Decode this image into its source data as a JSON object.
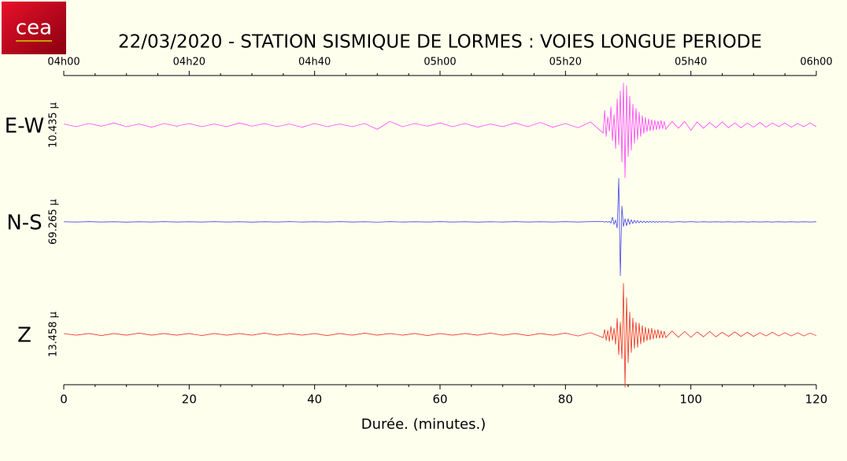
{
  "logo": "cea",
  "chart_data": {
    "type": "line",
    "title": "22/03/2020  -  STATION SISMIQUE DE LORMES : VOIES LONGUE PERIODE",
    "xlabel": "Durée.  (minutes.)",
    "xlim": [
      0,
      120
    ],
    "xticks": [
      0,
      20,
      40,
      60,
      80,
      100,
      120
    ],
    "xminorticks": [
      5,
      10,
      15,
      25,
      30,
      35,
      45,
      50,
      55,
      65,
      70,
      75,
      85,
      90,
      95,
      105,
      110,
      115
    ],
    "x2ticks": [
      {
        "value": 0,
        "label": "04h00"
      },
      {
        "value": 20,
        "label": "04h20"
      },
      {
        "value": 40,
        "label": "04h40"
      },
      {
        "value": 60,
        "label": "05h00"
      },
      {
        "value": 80,
        "label": "05h20"
      },
      {
        "value": 100,
        "label": "05h40"
      },
      {
        "value": 120,
        "label": "06h00"
      }
    ],
    "x": [
      0,
      2,
      4,
      6,
      8,
      10,
      12,
      14,
      16,
      18,
      20,
      22,
      24,
      26,
      28,
      30,
      32,
      34,
      36,
      38,
      40,
      42,
      44,
      46,
      48,
      50,
      52,
      54,
      56,
      58,
      60,
      62,
      64,
      66,
      68,
      70,
      72,
      74,
      76,
      78,
      80,
      82,
      84,
      86,
      86.25,
      86.5,
      86.75,
      87,
      87.25,
      87.5,
      87.75,
      88,
      88.25,
      88.5,
      88.75,
      89,
      89.25,
      89.5,
      89.75,
      90,
      90.25,
      90.5,
      90.75,
      91,
      91.25,
      91.5,
      91.75,
      92,
      92.25,
      92.5,
      92.75,
      93,
      93.25,
      93.5,
      93.75,
      94,
      94.25,
      94.5,
      94.75,
      95,
      95.25,
      95.5,
      95.75,
      96,
      97,
      98,
      99,
      100,
      101,
      102,
      103,
      104,
      105,
      106,
      107,
      108,
      109,
      110,
      111,
      112,
      113,
      114,
      115,
      116,
      117,
      118,
      119,
      120
    ],
    "series": [
      {
        "name": "E-W",
        "amplitude_label": "10.435 µ",
        "color": "#ff44ff",
        "ylim": [
          -10.435,
          10.435
        ],
        "values": [
          0.2,
          -0.3,
          0.3,
          -0.2,
          0.4,
          -0.3,
          0.2,
          -0.4,
          0.3,
          -0.2,
          0.3,
          -0.3,
          0.2,
          -0.3,
          0.4,
          -0.2,
          0.3,
          -0.3,
          0.2,
          -0.4,
          0.3,
          -0.3,
          0.2,
          -0.3,
          0.3,
          -0.8,
          0.7,
          -0.3,
          0.3,
          -0.2,
          0.4,
          -0.3,
          0.3,
          -0.4,
          0.2,
          -0.3,
          0.4,
          -0.3,
          0.5,
          -0.4,
          0.3,
          -0.5,
          0.6,
          -1.5,
          2.8,
          -2.2,
          1.6,
          -1.2,
          3.5,
          -3.0,
          2.0,
          -4.5,
          5.0,
          -3.8,
          6.5,
          -7.0,
          8.0,
          -10.0,
          7.5,
          -6.0,
          5.5,
          -4.8,
          4.0,
          -3.5,
          3.2,
          -2.8,
          2.5,
          -2.2,
          1.8,
          -1.6,
          1.5,
          -1.3,
          1.2,
          -1.1,
          1.0,
          -1.0,
          0.9,
          -0.9,
          0.8,
          -0.8,
          0.9,
          -0.7,
          0.7,
          -0.8,
          0.7,
          -0.6,
          0.7,
          -1.0,
          0.6,
          -0.6,
          0.5,
          -0.5,
          0.6,
          -0.5,
          0.4,
          -0.5,
          0.4,
          -0.4,
          0.5,
          -0.4,
          0.4,
          -0.3,
          0.4,
          -0.4,
          0.3,
          -0.3,
          0.4,
          -0.3
        ]
      },
      {
        "name": "N-S",
        "amplitude_label": "69.265 µ",
        "color": "#4444ee",
        "ylim": [
          -69.265,
          69.265
        ],
        "values": [
          0.2,
          -0.2,
          0.3,
          -0.2,
          0.2,
          -0.3,
          0.2,
          -0.2,
          0.3,
          -0.2,
          0.2,
          -0.2,
          0.3,
          -0.2,
          0.2,
          -0.3,
          0.2,
          -0.2,
          0.3,
          -0.2,
          0.2,
          -0.2,
          0.3,
          -0.2,
          0.2,
          -0.4,
          0.3,
          -0.2,
          0.2,
          -0.2,
          0.3,
          -0.2,
          0.2,
          -0.3,
          0.2,
          -0.2,
          0.3,
          -0.2,
          0.2,
          -0.2,
          0.3,
          -0.2,
          0.3,
          0.3,
          -0.3,
          0.4,
          -0.4,
          0.6,
          -1.5,
          6.0,
          -3.0,
          2.0,
          -8.0,
          55.0,
          -68.0,
          20.0,
          -6.0,
          4.0,
          -5.0,
          3.5,
          -3.0,
          2.5,
          -2.0,
          2.0,
          -1.5,
          1.5,
          -1.2,
          1.0,
          -0.9,
          0.8,
          -0.8,
          0.7,
          -0.6,
          0.6,
          -0.5,
          0.5,
          -0.5,
          0.4,
          -0.4,
          0.4,
          -0.4,
          0.3,
          -0.3,
          0.3,
          -0.3,
          0.3,
          -0.2,
          0.3,
          -0.2,
          0.2,
          -0.2,
          0.2,
          -0.2,
          0.2,
          -0.2,
          0.2,
          -0.2,
          0.2,
          -0.2,
          0.2,
          -0.2,
          0.2,
          -0.2,
          0.2,
          -0.2,
          0.2,
          -0.2,
          0.2
        ]
      },
      {
        "name": "Z",
        "amplitude_label": "13.458 µ",
        "color": "#ee3322",
        "ylim": [
          -13.458,
          13.458
        ],
        "values": [
          0.2,
          -0.2,
          0.2,
          -0.3,
          0.2,
          -0.2,
          0.3,
          -0.2,
          0.2,
          -0.2,
          0.2,
          -0.3,
          0.2,
          -0.2,
          0.2,
          -0.2,
          0.3,
          -0.2,
          0.2,
          -0.2,
          0.2,
          -0.3,
          0.2,
          -0.2,
          0.3,
          -0.2,
          0.2,
          -0.2,
          0.2,
          -0.3,
          0.2,
          -0.2,
          0.2,
          -0.2,
          0.3,
          -0.2,
          0.2,
          -0.3,
          0.2,
          -0.2,
          0.3,
          -0.4,
          0.4,
          -0.8,
          1.2,
          -1.5,
          1.0,
          -1.8,
          2.0,
          -1.5,
          1.5,
          -2.5,
          4.0,
          -5.0,
          3.0,
          -6.0,
          12.5,
          -13.0,
          9.0,
          -7.0,
          5.5,
          -4.5,
          4.0,
          -3.5,
          3.0,
          -3.2,
          2.8,
          -2.4,
          2.2,
          -2.0,
          1.8,
          -1.6,
          1.5,
          -1.4,
          1.5,
          -1.2,
          1.1,
          -1.0,
          1.2,
          -1.0,
          0.9,
          -0.9,
          0.8,
          -0.8,
          0.8,
          -0.7,
          0.7,
          -0.7,
          0.6,
          -0.6,
          0.7,
          -0.6,
          0.5,
          -0.5,
          0.6,
          -0.5,
          0.5,
          -0.5,
          0.4,
          -0.4,
          0.5,
          -0.4,
          0.4,
          -0.4,
          0.4,
          -0.4,
          0.3,
          -0.3
        ]
      }
    ]
  }
}
